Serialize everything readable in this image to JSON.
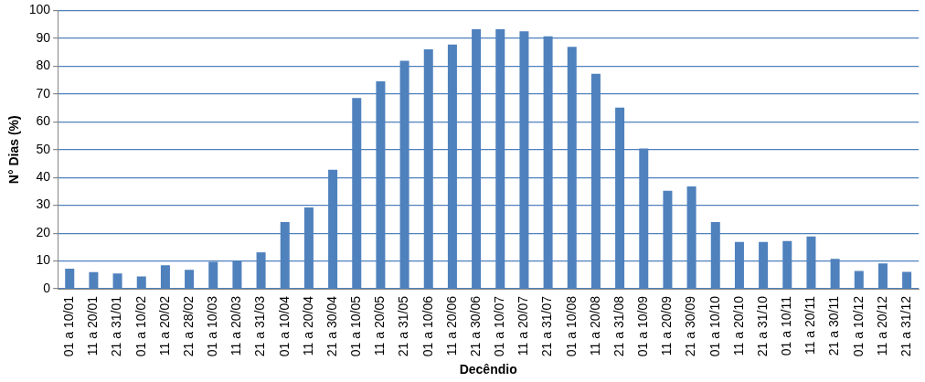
{
  "chart_data": {
    "type": "bar",
    "xlabel": "Decêndio",
    "ylabel": "N° Dias (%)",
    "categories": [
      "01 a 10/01",
      "11 a 20/01",
      "21 a 31/01",
      "01 a 10/02",
      "11 a 20/02",
      "21 a 28/02",
      "01 a 10/03",
      "11 a 20/03",
      "21 a 31/03",
      "01 a 10/04",
      "11 a 20/04",
      "21 a 30/04",
      "01 a 10/05",
      "11 a 20/05",
      "21 a 31/05",
      "01 a 10/06",
      "11 a 20/06",
      "21 a 30/06",
      "01 a 10/07",
      "11 a 20/07",
      "21 a 31/07",
      "01 a 10/08",
      "11 a 20/08",
      "21 a 31/08",
      "01 a 10/09",
      "11 a 20/09",
      "21 a 30/09",
      "01 a 10/10",
      "11 a 20/10",
      "21 a 31/10",
      "01 a 10/11",
      "11 a 20/11",
      "21 a 30/11",
      "01 a 10/12",
      "11 a 20/12",
      "21 a 31/12"
    ],
    "values": [
      7.2,
      6.0,
      5.5,
      4.4,
      8.5,
      6.8,
      9.7,
      10.1,
      13.1,
      24.0,
      29.2,
      42.8,
      68.5,
      74.5,
      81.9,
      86.0,
      87.7,
      93.2,
      93.2,
      92.5,
      90.7,
      86.9,
      77.2,
      65.1,
      50.4,
      35.2,
      36.8,
      24.0,
      16.8,
      16.8,
      17.2,
      18.8,
      10.8,
      6.4,
      9.1,
      6.1
    ],
    "color": "#4f81bd",
    "ylim": [
      0,
      100
    ],
    "yticks": [
      0,
      10,
      20,
      30,
      40,
      50,
      60,
      70,
      80,
      90,
      100
    ],
    "grid": "y",
    "legend": false
  }
}
